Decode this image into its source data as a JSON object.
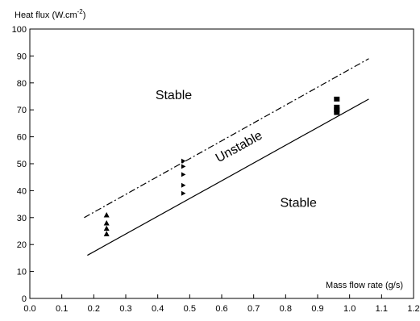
{
  "chart_data": {
    "type": "scatter",
    "title": "",
    "ylabel_main": "Heat flux (W.cm",
    "ylabel_exp": "-2",
    "ylabel_close": ")",
    "xlabel": "Mass flow rate (g/s)",
    "xlim": [
      0.0,
      1.2
    ],
    "ylim": [
      0,
      100
    ],
    "x_ticks": [
      "0.0",
      "0.1",
      "0.2",
      "0.3",
      "0.4",
      "0.5",
      "0.6",
      "0.7",
      "0.8",
      "0.9",
      "1.0",
      "1.1",
      "1.2"
    ],
    "y_ticks": [
      "0",
      "10",
      "20",
      "30",
      "40",
      "50",
      "60",
      "70",
      "80",
      "90",
      "100"
    ],
    "grid": false,
    "lines": [
      {
        "style": "dash-dot",
        "x": [
          0.17,
          1.06
        ],
        "y": [
          30,
          89
        ]
      },
      {
        "style": "solid",
        "x": [
          0.18,
          1.06
        ],
        "y": [
          16,
          74
        ]
      }
    ],
    "series": [
      {
        "marker": "triangle",
        "x": [
          0.24,
          0.24,
          0.24,
          0.24
        ],
        "y": [
          24,
          26,
          28,
          31
        ]
      },
      {
        "marker": "triangle-right",
        "x": [
          0.48,
          0.48,
          0.48,
          0.48,
          0.48
        ],
        "y": [
          39,
          42,
          46,
          49,
          51
        ]
      },
      {
        "marker": "square",
        "x": [
          0.96,
          0.96,
          0.96,
          0.96
        ],
        "y": [
          69,
          70,
          71,
          74
        ]
      }
    ],
    "annotations": [
      {
        "text": "Stable",
        "x": 0.45,
        "y": 74
      },
      {
        "text": "Unstable",
        "x": 0.66,
        "y": 55
      },
      {
        "text": "Stable",
        "x": 0.84,
        "y": 34
      }
    ]
  }
}
